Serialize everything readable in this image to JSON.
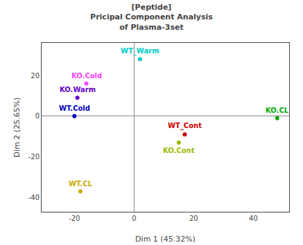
{
  "chart_data": {
    "type": "scatter",
    "title": "[Peptide]\nPricipal Component Analysis\nof Plasma-3set",
    "xlabel": "Dim 1 (45.32%)",
    "ylabel": "Dim 2 (25.65%)",
    "x": [
      2,
      -16,
      -19,
      -20,
      17,
      15,
      48,
      -18
    ],
    "values": [
      28,
      16,
      9,
      0,
      -9,
      -13,
      -1,
      -37
    ],
    "annotations": [
      "WT_Warm",
      "KO.Cold",
      "KO.Warm",
      "WT.Cold",
      "WT_Cont",
      "KO.Cont",
      "KO.CL",
      "WT.CL"
    ],
    "colors": [
      "#00CCCC",
      "#FF44FF",
      "#6600CC",
      "#0000BB",
      "#CC0000",
      "#99BB00",
      "#00AA00",
      "#CCAA00"
    ],
    "marker": "circle",
    "xlim": [
      -31,
      52
    ],
    "ylim": [
      -47,
      36
    ],
    "xticks": [
      -20,
      0,
      20,
      40
    ],
    "yticks": [
      -40,
      -20,
      0,
      20
    ],
    "grid": false
  }
}
